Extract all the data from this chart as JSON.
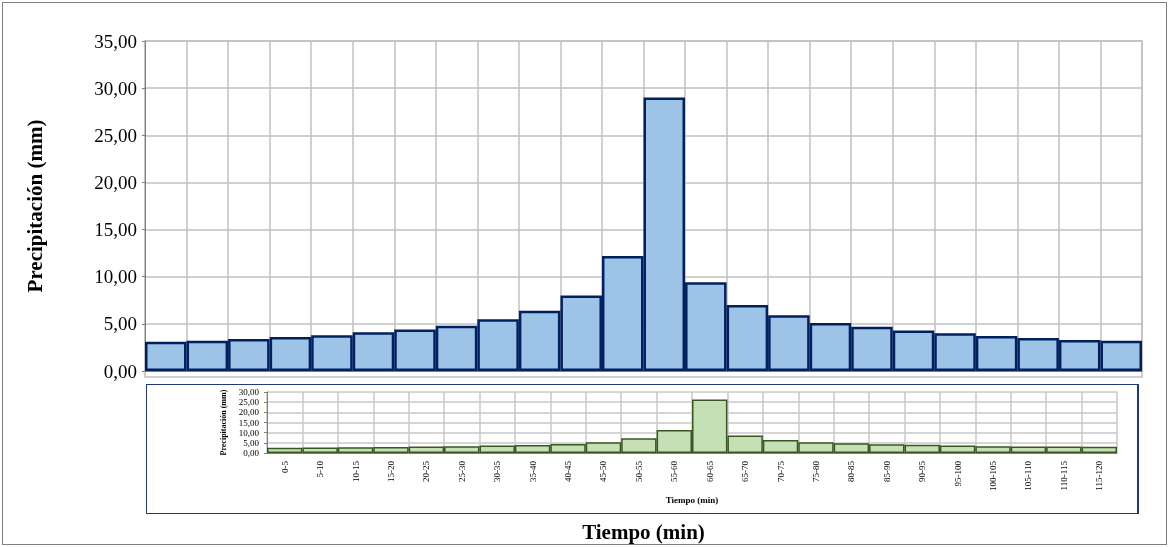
{
  "chart_data": [
    {
      "type": "bar",
      "ylabel": "Precipitación (mm)",
      "xlabel": "Tiempo (min)",
      "categories": [
        null,
        null,
        null,
        null,
        null,
        null,
        null,
        null,
        null,
        null,
        null,
        null,
        null,
        null,
        null,
        null,
        null,
        null,
        null,
        null,
        null,
        null,
        null,
        null
      ],
      "series": [
        {
          "color": "#9dc3e6",
          "values": [
            3.1,
            3.2,
            3.4,
            3.6,
            3.8,
            4.1,
            4.4,
            4.8,
            5.5,
            6.4,
            8.0,
            12.2,
            29.0,
            9.4,
            7.0,
            5.9,
            5.1,
            4.7,
            4.3,
            4.0,
            3.7,
            3.5,
            3.3,
            3.2
          ]
        }
      ],
      "ylim": [
        0,
        35
      ],
      "yticks": [
        {
          "value": 0,
          "label": "0,00"
        },
        {
          "value": 5,
          "label": "5,00"
        },
        {
          "value": 10,
          "label": "10,00"
        },
        {
          "value": 15,
          "label": "15,00"
        },
        {
          "value": 20,
          "label": "20,00"
        },
        {
          "value": 25,
          "label": "25,00"
        },
        {
          "value": 30,
          "label": "30,00"
        },
        {
          "value": 35,
          "label": "35,00"
        }
      ],
      "grid": true
    },
    {
      "type": "bar",
      "ylabel": "Precipitación (mm)",
      "xlabel": "Tiempo (min)",
      "categories": [
        "0-5",
        "5-10",
        "10-15",
        "15-20",
        "20-25",
        "25-30",
        "30-35",
        "35-40",
        "40-45",
        "45-50",
        "50-55",
        "55-60",
        "60-65",
        "65-70",
        "70-75",
        "75-80",
        "80-85",
        "85-90",
        "90-95",
        "95-100",
        "100-105",
        "105-110",
        "110-115",
        "115-120"
      ],
      "series": [
        {
          "color": "#c5e0b4",
          "values": [
            2.6,
            2.8,
            2.9,
            3.0,
            3.2,
            3.4,
            3.7,
            4.0,
            4.5,
            5.3,
            7.3,
            11.3,
            26.3,
            8.6,
            6.4,
            5.3,
            4.8,
            4.4,
            4.1,
            3.7,
            3.4,
            3.2,
            3.2,
            3.1
          ]
        }
      ],
      "ylim": [
        0,
        30
      ],
      "yticks": [
        {
          "value": 0,
          "label": "0,00"
        },
        {
          "value": 5,
          "label": "5,00"
        },
        {
          "value": 10,
          "label": "10,00"
        },
        {
          "value": 15,
          "label": "15,00"
        },
        {
          "value": 20,
          "label": "20,00"
        },
        {
          "value": 25,
          "label": "25,00"
        },
        {
          "value": 30,
          "label": "30,00"
        }
      ],
      "grid": true
    }
  ]
}
